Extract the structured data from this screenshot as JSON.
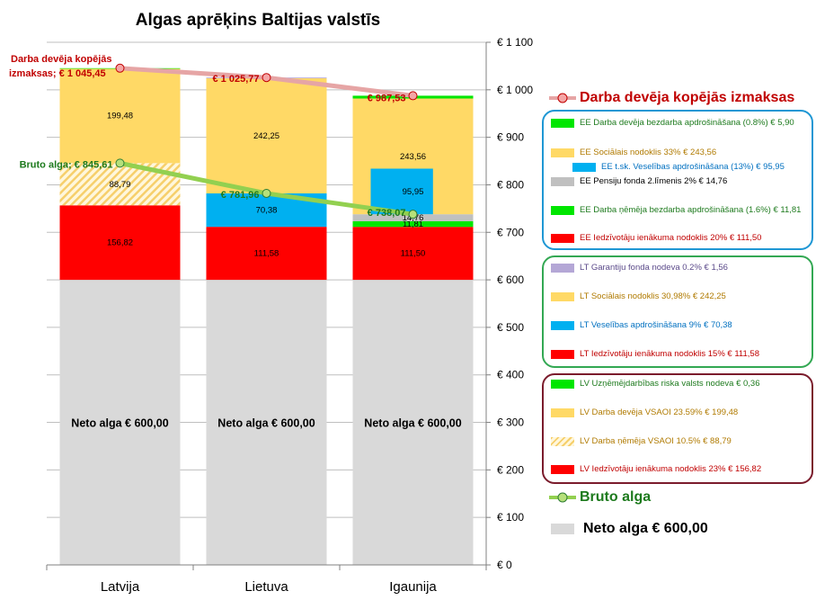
{
  "chart_data": {
    "type": "bar",
    "title": "Algas aprēķins Baltijas valstīs",
    "categories": [
      "Latvija",
      "Lietuva",
      "Igaunija"
    ],
    "y_axis": {
      "min": 0,
      "max": 1100,
      "step": 100,
      "position": "right",
      "tick_labels": [
        "€ 0",
        "€ 100",
        "€ 200",
        "€ 300",
        "€ 400",
        "€ 500",
        "€ 600",
        "€ 700",
        "€ 800",
        "€ 900",
        "€ 1 000",
        "€ 1 100"
      ]
    },
    "gridlines": true,
    "colors": {
      "neto": "#d9d9d9",
      "red": "#ff0000",
      "blue": "#00b0f0",
      "yellow": "#ffd966",
      "green": "#00e600",
      "gray": "#c0c0c0",
      "purple": "#b4a7d6",
      "hatch": "#f6cf6b",
      "employer_line": "#e6a5a5",
      "employer_text": "#c00000",
      "bruto_line": "#92d050",
      "bruto_text": "#1d7a1d",
      "ee_border": "#1f97d4",
      "lt_border": "#33a853",
      "lv_border": "#7b1c2c"
    },
    "stacks": [
      {
        "category": "Latvija",
        "segments": [
          {
            "value": 600.0,
            "color": "neto",
            "label": "Neto alga € 600,00"
          },
          {
            "value": 156.82,
            "color": "red",
            "label": "156,82"
          },
          {
            "value": 88.79,
            "color": "hatch",
            "label": "88,79"
          },
          {
            "value": 199.48,
            "color": "yellow",
            "label": "199,48"
          },
          {
            "value": 0.36,
            "color": "green",
            "label": ""
          }
        ]
      },
      {
        "category": "Lietuva",
        "segments": [
          {
            "value": 600.0,
            "color": "neto",
            "label": "Neto alga € 600,00"
          },
          {
            "value": 111.58,
            "color": "red",
            "label": "111,58"
          },
          {
            "value": 70.38,
            "color": "blue",
            "label": "70,38"
          },
          {
            "value": 242.25,
            "color": "yellow",
            "label": "242,25"
          },
          {
            "value": 1.56,
            "color": "purple",
            "label": ""
          }
        ]
      },
      {
        "category": "Igaunija",
        "segments": [
          {
            "value": 600.0,
            "color": "neto",
            "label": "Neto alga € 600,00"
          },
          {
            "value": 111.5,
            "color": "red",
            "label": "111,50"
          },
          {
            "value": 11.81,
            "color": "green",
            "label": "11,81"
          },
          {
            "value": 14.76,
            "color": "gray",
            "label": "14,76"
          },
          {
            "value": 243.56,
            "color": "yellow",
            "label": "243,56"
          },
          {
            "value": 5.9,
            "color": "green",
            "label": ""
          }
        ]
      }
    ],
    "ee_health_overlay": {
      "category": "Igaunija",
      "from": 738.07,
      "value": 95.95,
      "label": "95,95"
    },
    "series": [
      {
        "name": "Darba devēja kopējās izmaksas",
        "values": [
          1045.45,
          1025.77,
          987.53
        ],
        "point_labels": [
          "Darba devēja kopējās izmaksas; € 1 045,45",
          "€ 1 025,77",
          "€ 987,53"
        ]
      },
      {
        "name": "Bruto alga",
        "values": [
          845.61,
          781.96,
          738.07
        ],
        "point_labels": [
          "Bruto alga; € 845,61",
          "€ 781,96",
          "€ 738,07"
        ]
      }
    ]
  },
  "legend": {
    "employer_cost": "Darba devēja kopējās izmaksas",
    "ee_items": [
      "EE Darba devēja bezdarba apdrošināšana (0.8%) € 5,90",
      "EE Sociālais nodoklis 33% € 243,56",
      "EE t.sk. Veselības apdrošināšana (13%) € 95,95",
      "EE Pensiju fonda 2.līmenis 2% € 14,76",
      "EE Darba ņēmēja bezdarba apdrošināšana (1.6%) € 11,81",
      "EE Iedzīvotāju ienākuma nodoklis 20% € 111,50"
    ],
    "lt_items": [
      "LT Garantiju fonda nodeva 0.2% € 1,56",
      "LT Sociālais nodoklis 30,98% € 242,25",
      "LT Veselības apdrošināšana 9% € 70,38",
      "LT Iedzīvotāju ienākuma nodoklis 15% € 111,58"
    ],
    "lv_items": [
      "LV Uzņēmējdarbības riska valsts nodeva € 0,36",
      "LV Darba devēja VSAOI 23.59% € 199,48",
      "LV Darba ņēmēja VSAOI 10.5% € 88,79",
      "LV Iedzīvotāju ienākuma nodoklis 23% € 156,82"
    ],
    "bruto": "Bruto alga",
    "neto": "Neto alga € 600,00"
  }
}
